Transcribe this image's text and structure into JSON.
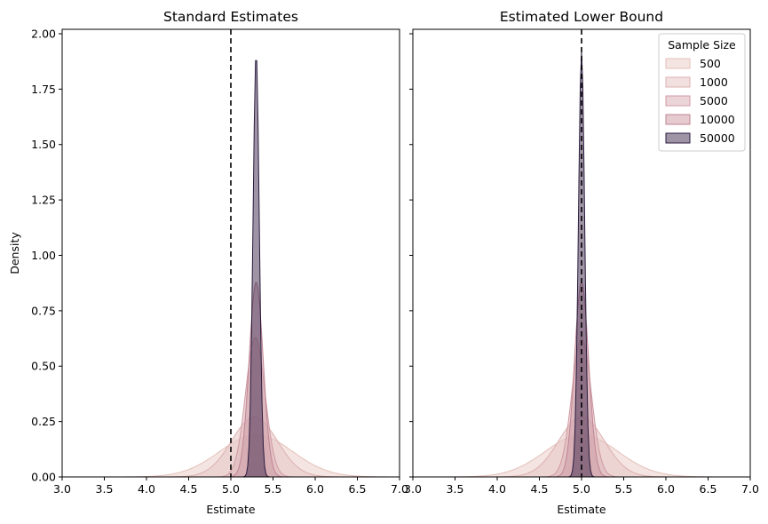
{
  "chart_data": [
    {
      "type": "area",
      "title": "Standard Estimates",
      "xlabel": "Estimate",
      "ylabel": "Density",
      "xlim": [
        3.0,
        7.0
      ],
      "ylim": [
        0.0,
        2.02
      ],
      "xticks": [
        "3.0",
        "3.5",
        "4.0",
        "4.5",
        "5.0",
        "5.5",
        "6.0",
        "6.5",
        "7.0"
      ],
      "yticks": [
        "0.00",
        "0.25",
        "0.50",
        "0.75",
        "1.00",
        "1.25",
        "1.50",
        "1.75",
        "2.00"
      ],
      "reference_line": 5.0,
      "series": [
        {
          "name": "500",
          "center": 5.3,
          "peak": 0.19,
          "sd": 0.43,
          "fill": "#ecd4cf",
          "stroke": "#e3bfb9",
          "alpha": 0.6
        },
        {
          "name": "1000",
          "center": 5.28,
          "peak": 0.27,
          "sd": 0.27,
          "fill": "#e6c6c5",
          "stroke": "#dcb0af",
          "alpha": 0.55
        },
        {
          "name": "5000",
          "center": 5.29,
          "peak": 0.63,
          "sd": 0.115,
          "fill": "#dcb2b8",
          "stroke": "#cf9aa3",
          "alpha": 0.55
        },
        {
          "name": "10000",
          "center": 5.3,
          "peak": 0.88,
          "sd": 0.083,
          "fill": "#cf9ea9",
          "stroke": "#bf8593",
          "alpha": 0.55
        },
        {
          "name": "50000",
          "center": 5.3,
          "peak": 1.92,
          "sd": 0.037,
          "fill": "#3e2a4d",
          "stroke": "#2a1b3d",
          "alpha": 0.5
        }
      ]
    },
    {
      "type": "area",
      "title": "Estimated Lower Bound",
      "xlabel": "Estimate",
      "ylabel": "",
      "xlim": [
        3.0,
        7.0
      ],
      "ylim": [
        0.0,
        2.02
      ],
      "xticks": [
        "3.0",
        "3.5",
        "4.0",
        "4.5",
        "5.0",
        "5.5",
        "6.0",
        "6.5",
        "7.0"
      ],
      "yticks": [
        "0.00",
        "0.25",
        "0.50",
        "0.75",
        "1.00",
        "1.25",
        "1.50",
        "1.75",
        "2.00"
      ],
      "reference_line": 5.0,
      "series": [
        {
          "name": "500",
          "center": 5.0,
          "peak": 0.19,
          "sd": 0.43,
          "fill": "#ecd4cf",
          "stroke": "#e3bfb9",
          "alpha": 0.6
        },
        {
          "name": "1000",
          "center": 5.0,
          "peak": 0.27,
          "sd": 0.27,
          "fill": "#e6c6c5",
          "stroke": "#dcb0af",
          "alpha": 0.55
        },
        {
          "name": "5000",
          "center": 5.0,
          "peak": 0.63,
          "sd": 0.115,
          "fill": "#dcb2b8",
          "stroke": "#cf9aa3",
          "alpha": 0.55
        },
        {
          "name": "10000",
          "center": 5.0,
          "peak": 0.88,
          "sd": 0.083,
          "fill": "#cf9ea9",
          "stroke": "#bf8593",
          "alpha": 0.55
        },
        {
          "name": "50000",
          "center": 5.0,
          "peak": 1.92,
          "sd": 0.037,
          "fill": "#3e2a4d",
          "stroke": "#2a1b3d",
          "alpha": 0.5
        }
      ]
    }
  ],
  "legend": {
    "title": "Sample Size",
    "placement": "top-right",
    "entries": [
      "500",
      "1000",
      "5000",
      "10000",
      "50000"
    ]
  }
}
